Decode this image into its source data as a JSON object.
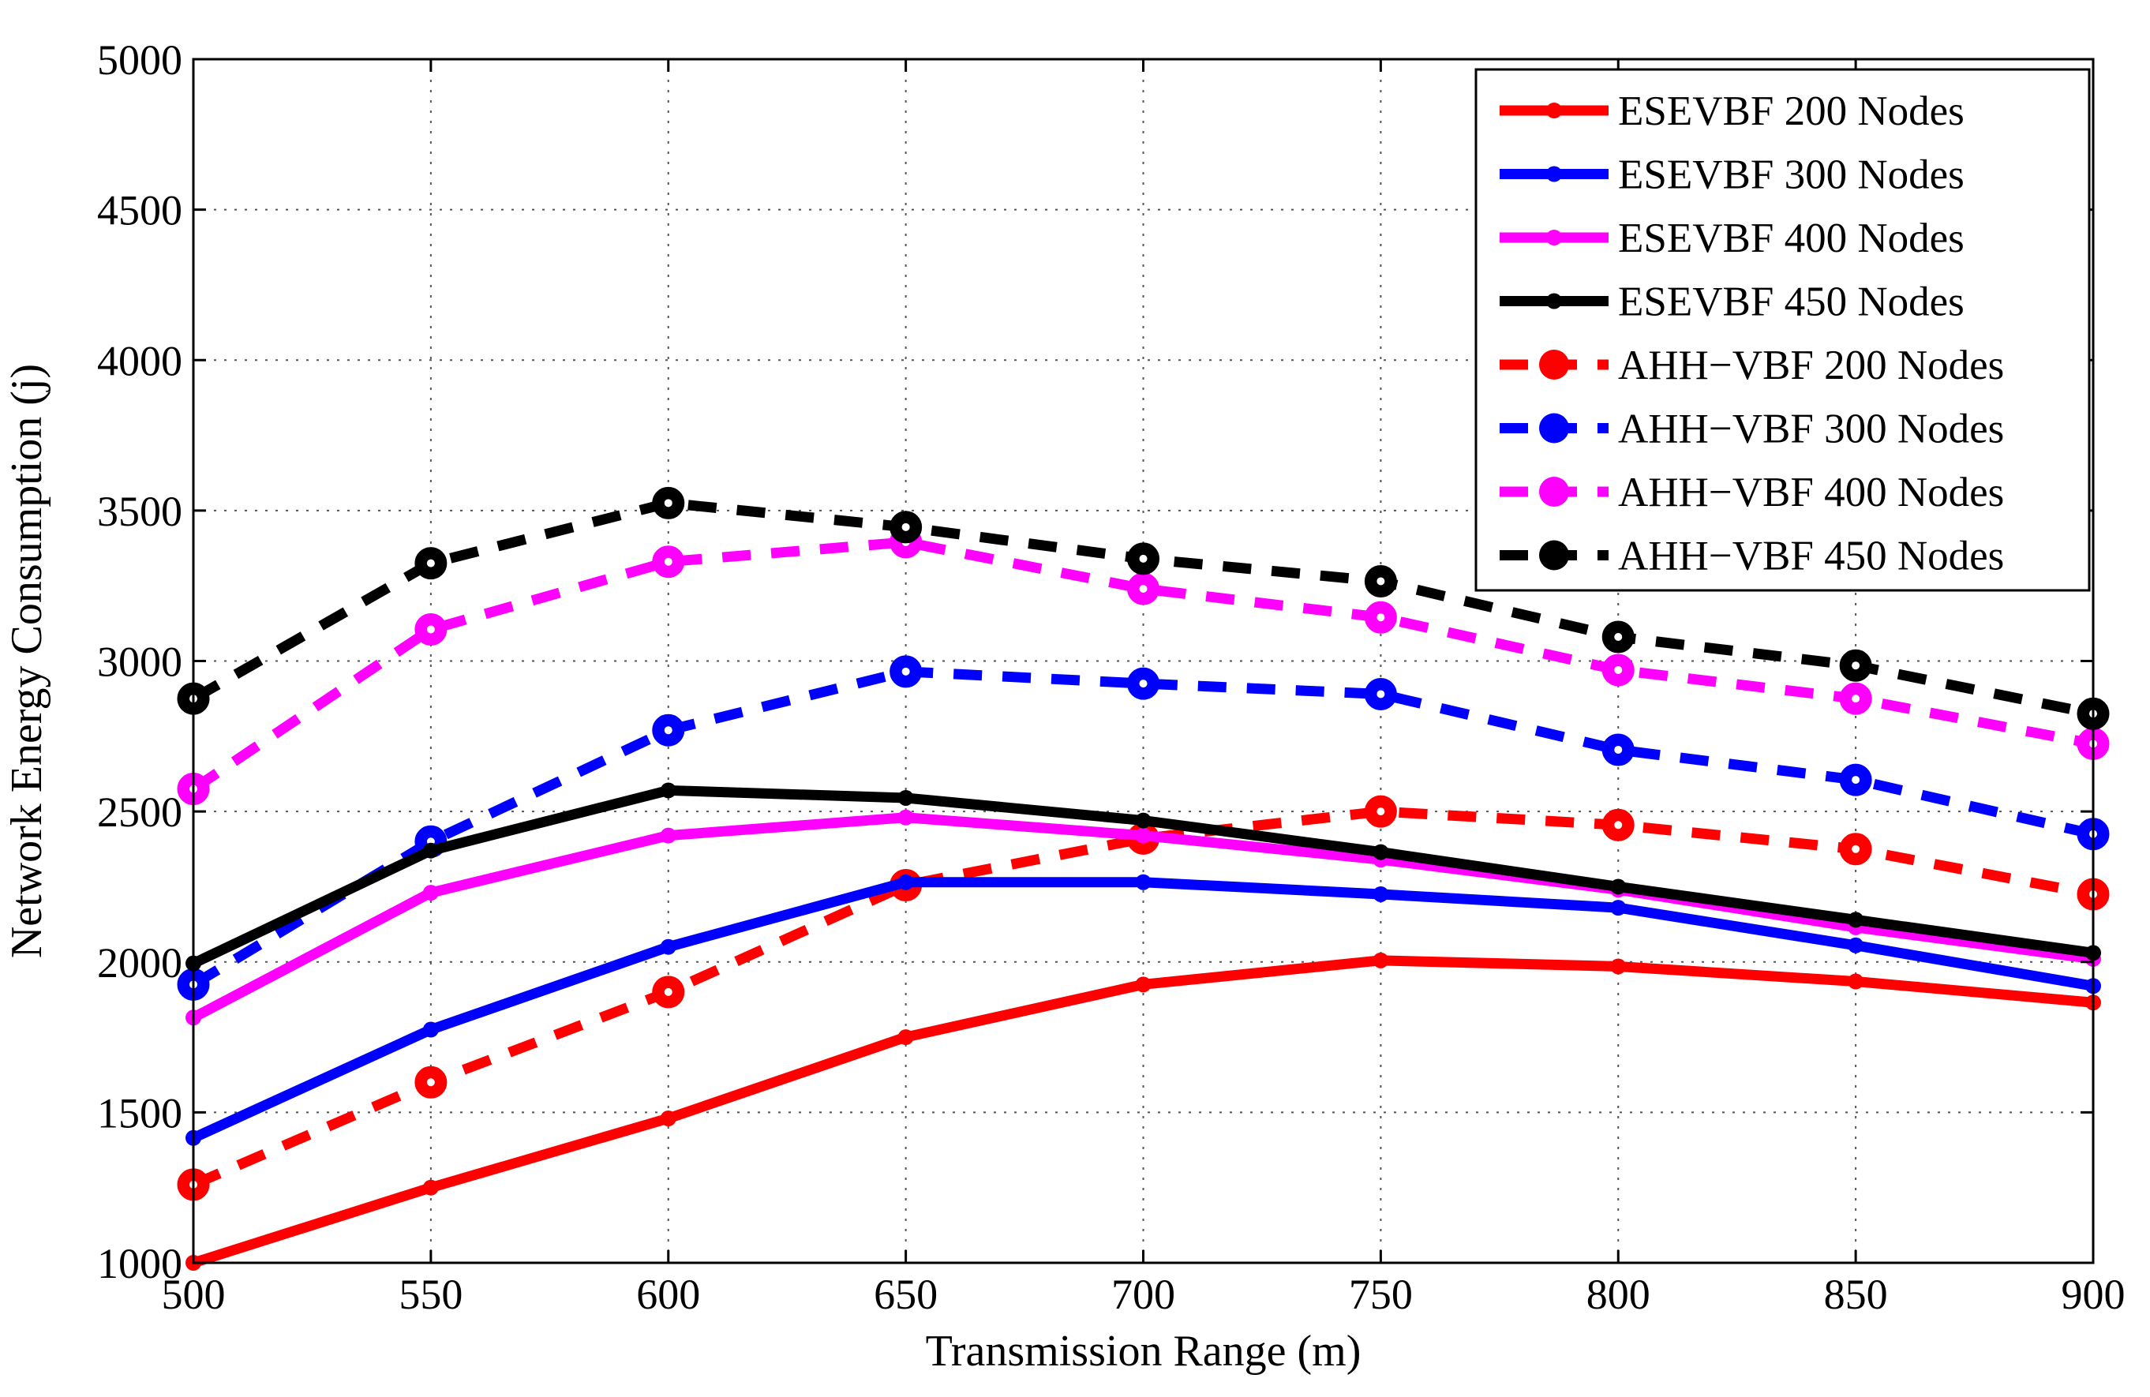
{
  "chart_data": {
    "type": "line",
    "xlabel": "Transmission Range (m)",
    "ylabel": "Network Energy Consumption (j)",
    "x": [
      500,
      550,
      600,
      650,
      700,
      750,
      800,
      850,
      900
    ],
    "xlim": [
      500,
      900
    ],
    "ylim": [
      1000,
      5000
    ],
    "xticks": [
      "500",
      "550",
      "600",
      "650",
      "700",
      "750",
      "800",
      "850",
      "900"
    ],
    "yticks": [
      "1000",
      "1500",
      "2000",
      "2500",
      "3000",
      "3500",
      "4000",
      "4500",
      "5000"
    ],
    "grid": true,
    "legend_position": "top-right",
    "series": [
      {
        "name": "ESEVBF 200 Nodes",
        "color": "#ff0000",
        "style": "solid",
        "marker": "dot-small",
        "values": [
          1000,
          1250,
          1480,
          1750,
          1925,
          2005,
          1985,
          1935,
          1865
        ]
      },
      {
        "name": "ESEVBF 300 Nodes",
        "color": "#0000ff",
        "style": "solid",
        "marker": "dot-small",
        "values": [
          1415,
          1775,
          2050,
          2265,
          2265,
          2225,
          2180,
          2055,
          1920
        ]
      },
      {
        "name": "ESEVBF 400 Nodes",
        "color": "#ff00ff",
        "style": "solid",
        "marker": "dot-small",
        "values": [
          1815,
          2230,
          2420,
          2480,
          2420,
          2340,
          2240,
          2115,
          2010
        ]
      },
      {
        "name": "ESEVBF 450 Nodes",
        "color": "#000000",
        "style": "solid",
        "marker": "dot-small",
        "values": [
          1995,
          2370,
          2570,
          2545,
          2470,
          2365,
          2250,
          2140,
          2030
        ]
      },
      {
        "name": "AHH−VBF 200 Nodes",
        "color": "#ff0000",
        "style": "dashed",
        "marker": "circle-large",
        "values": [
          1260,
          1600,
          1900,
          2255,
          2410,
          2500,
          2455,
          2375,
          2225
        ]
      },
      {
        "name": "AHH−VBF 300 Nodes",
        "color": "#0000ff",
        "style": "dashed",
        "marker": "circle-large",
        "values": [
          1925,
          2400,
          2770,
          2965,
          2925,
          2890,
          2705,
          2605,
          2425
        ]
      },
      {
        "name": "AHH−VBF 400 Nodes",
        "color": "#ff00ff",
        "style": "dashed",
        "marker": "circle-large",
        "values": [
          2575,
          3105,
          3330,
          3395,
          3240,
          3145,
          2970,
          2875,
          2725
        ]
      },
      {
        "name": "AHH−VBF 450 Nodes",
        "color": "#000000",
        "style": "dashed",
        "marker": "circle-large",
        "values": [
          2875,
          3325,
          3525,
          3445,
          3340,
          3265,
          3080,
          2985,
          2825
        ]
      }
    ]
  }
}
